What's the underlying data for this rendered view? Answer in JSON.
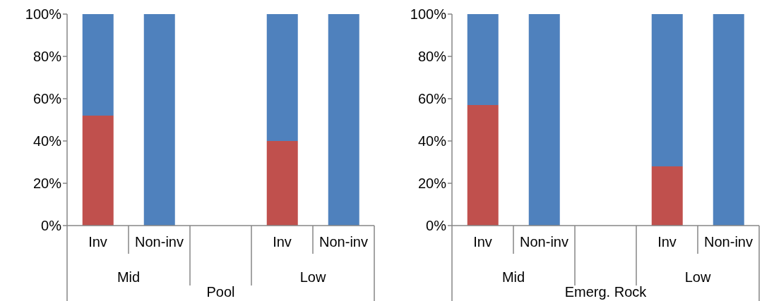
{
  "chart_data": [
    {
      "type": "bar",
      "stacked": true,
      "xlabel": "Pool",
      "annotations": [
        "Mid",
        "Low"
      ],
      "categories": [
        "Inv",
        "Non-inv",
        null,
        "Inv",
        "Non-inv"
      ],
      "series": [
        {
          "color": "#c0504d",
          "values": [
            52,
            0,
            null,
            40,
            0
          ]
        },
        {
          "color": "#4f81bd",
          "values": [
            48,
            100,
            null,
            60,
            100
          ]
        }
      ],
      "ylim": [
        0,
        100
      ],
      "yticks": [
        {
          "value": 0,
          "label": "0%"
        },
        {
          "value": 20,
          "label": "20%"
        },
        {
          "value": 40,
          "label": "40%"
        },
        {
          "value": 60,
          "label": "60%"
        },
        {
          "value": 80,
          "label": "80%"
        },
        {
          "value": 100,
          "label": "100%"
        }
      ],
      "grid": false,
      "legend": false
    },
    {
      "type": "bar",
      "stacked": true,
      "xlabel": "Emerg. Rock",
      "annotations": [
        "Mid",
        "Low"
      ],
      "categories": [
        "Inv",
        "Non-inv",
        null,
        "Inv",
        "Non-inv"
      ],
      "series": [
        {
          "color": "#c0504d",
          "values": [
            57,
            0,
            null,
            28,
            0
          ]
        },
        {
          "color": "#4f81bd",
          "values": [
            43,
            100,
            null,
            72,
            100
          ]
        }
      ],
      "ylim": [
        0,
        100
      ],
      "yticks": [
        {
          "value": 0,
          "label": "0%"
        },
        {
          "value": 20,
          "label": "20%"
        },
        {
          "value": 40,
          "label": "40%"
        },
        {
          "value": 60,
          "label": "60%"
        },
        {
          "value": 80,
          "label": "80%"
        },
        {
          "value": 100,
          "label": "100%"
        }
      ],
      "grid": false,
      "legend": false
    }
  ]
}
